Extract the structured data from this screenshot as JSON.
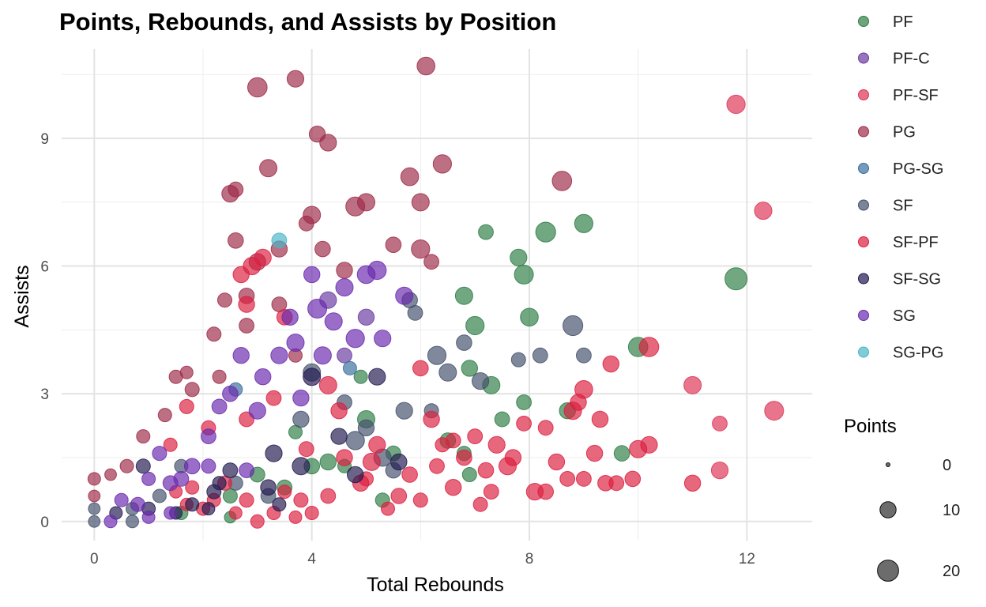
{
  "chart_data": {
    "type": "scatter",
    "title": "Points, Rebounds, and Assists by Position",
    "xlabel": "Total Rebounds",
    "ylabel": "Assists",
    "xlim": [
      -0.6,
      13.2
    ],
    "ylim": [
      -0.45,
      11.1
    ],
    "xticks": [
      0,
      4,
      8,
      12
    ],
    "yticks": [
      0,
      3,
      6,
      9
    ],
    "grid": true,
    "legend_position": "right",
    "size_legend": {
      "title": "Points",
      "values": [
        0,
        10,
        20
      ]
    },
    "series": [
      {
        "name": "PF",
        "color": "#2e7d45",
        "points": [
          [
            11.8,
            5.7,
            22
          ],
          [
            10.0,
            4.1,
            16
          ],
          [
            9.0,
            7.0,
            14
          ],
          [
            8.3,
            6.8,
            17
          ],
          [
            7.9,
            5.8,
            15
          ],
          [
            7.8,
            6.2,
            11
          ],
          [
            7.2,
            6.8,
            8
          ],
          [
            8.0,
            4.8,
            13
          ],
          [
            7.0,
            4.6,
            14
          ],
          [
            6.8,
            5.3,
            12
          ],
          [
            6.9,
            3.6,
            10
          ],
          [
            7.3,
            3.2,
            12
          ],
          [
            7.5,
            2.4,
            8
          ],
          [
            6.5,
            1.9,
            9
          ],
          [
            6.8,
            1.6,
            7
          ],
          [
            7.9,
            2.8,
            8
          ],
          [
            8.7,
            2.6,
            10
          ],
          [
            5.0,
            2.4,
            12
          ],
          [
            4.9,
            3.4,
            6
          ],
          [
            5.5,
            1.6,
            8
          ],
          [
            5.3,
            0.5,
            7
          ],
          [
            4.3,
            1.4,
            10
          ],
          [
            3.5,
            0.8,
            8
          ],
          [
            3.7,
            2.1,
            6
          ],
          [
            4.0,
            1.3,
            9
          ],
          [
            2.5,
            0.6,
            7
          ],
          [
            1.6,
            0.2,
            6
          ],
          [
            2.5,
            0.1,
            4
          ],
          [
            3.0,
            1.1,
            8
          ],
          [
            4.6,
            1.3,
            6
          ],
          [
            9.7,
            1.6,
            9
          ],
          [
            6.9,
            1.1,
            7
          ]
        ]
      },
      {
        "name": "PF-C",
        "color": "#6a3ba0",
        "points": [
          [
            4.3,
            5.2,
            11
          ],
          [
            5.0,
            4.8,
            10
          ],
          [
            4.6,
            3.9,
            8
          ]
        ]
      },
      {
        "name": "PF-SF",
        "color": "#dd3355",
        "points": [
          [
            11.8,
            9.8,
            14
          ],
          [
            12.3,
            7.3,
            12
          ],
          [
            12.5,
            2.6,
            15
          ],
          [
            11.0,
            3.2,
            12
          ],
          [
            11.5,
            2.3,
            8
          ],
          [
            11.5,
            1.2,
            11
          ]
        ]
      },
      {
        "name": "PG",
        "color": "#9e2b48",
        "points": [
          [
            3.0,
            10.2,
            16
          ],
          [
            3.7,
            10.4,
            11
          ],
          [
            6.1,
            10.7,
            13
          ],
          [
            4.1,
            9.1,
            10
          ],
          [
            4.3,
            8.9,
            11
          ],
          [
            3.2,
            8.3,
            12
          ],
          [
            2.5,
            7.7,
            11
          ],
          [
            2.6,
            7.8,
            8
          ],
          [
            5.8,
            8.1,
            13
          ],
          [
            6.4,
            8.4,
            14
          ],
          [
            8.6,
            8.0,
            16
          ],
          [
            4.0,
            7.2,
            12
          ],
          [
            4.8,
            7.4,
            15
          ],
          [
            5.0,
            7.5,
            12
          ],
          [
            6.0,
            7.5,
            12
          ],
          [
            2.6,
            6.6,
            9
          ],
          [
            3.0,
            6.1,
            11
          ],
          [
            3.4,
            6.4,
            10
          ],
          [
            4.2,
            6.4,
            9
          ],
          [
            6.0,
            6.4,
            14
          ],
          [
            6.2,
            6.1,
            8
          ],
          [
            2.4,
            5.2,
            7
          ],
          [
            2.8,
            5.3,
            9
          ],
          [
            3.4,
            5.1,
            8
          ],
          [
            2.8,
            4.6,
            8
          ],
          [
            2.2,
            4.4,
            7
          ],
          [
            3.7,
            3.9,
            6
          ],
          [
            1.5,
            3.4,
            6
          ],
          [
            1.8,
            3.1,
            7
          ],
          [
            1.3,
            2.5,
            6
          ],
          [
            0.9,
            2.0,
            6
          ],
          [
            0.6,
            1.3,
            6
          ],
          [
            0.0,
            1.0,
            5
          ],
          [
            0.3,
            1.1,
            4
          ],
          [
            0.0,
            0.6,
            4
          ],
          [
            1.7,
            3.5,
            5
          ],
          [
            2.3,
            3.4,
            6
          ],
          [
            4.6,
            5.9,
            10
          ],
          [
            5.5,
            6.5,
            9
          ],
          [
            3.9,
            7.0,
            8
          ]
        ]
      },
      {
        "name": "PG-SG",
        "color": "#3a6f9e",
        "points": [
          [
            4.7,
            3.6,
            6
          ],
          [
            2.6,
            3.1,
            6
          ]
        ]
      },
      {
        "name": "SF",
        "color": "#44506b",
        "points": [
          [
            8.8,
            4.6,
            17
          ],
          [
            9.0,
            3.9,
            8
          ],
          [
            8.2,
            3.9,
            8
          ],
          [
            7.8,
            3.8,
            7
          ],
          [
            6.3,
            3.9,
            14
          ],
          [
            5.8,
            5.2,
            9
          ],
          [
            5.7,
            2.6,
            11
          ],
          [
            5.9,
            4.9,
            8
          ],
          [
            6.2,
            2.6,
            7
          ],
          [
            5.3,
            1.5,
            12
          ],
          [
            4.8,
            1.9,
            14
          ],
          [
            5.0,
            2.2,
            10
          ],
          [
            4.6,
            2.8,
            8
          ],
          [
            5.5,
            1.2,
            9
          ],
          [
            3.8,
            2.4,
            10
          ],
          [
            4.0,
            3.5,
            12
          ],
          [
            3.2,
            0.6,
            8
          ],
          [
            2.6,
            0.9,
            7
          ],
          [
            1.6,
            1.3,
            6
          ],
          [
            1.2,
            0.6,
            6
          ],
          [
            0.7,
            0.3,
            5
          ],
          [
            0.0,
            0.3,
            4
          ],
          [
            0.0,
            0.0,
            4
          ],
          [
            0.7,
            0.0,
            5
          ],
          [
            6.5,
            3.5,
            12
          ],
          [
            7.1,
            3.3,
            11
          ],
          [
            6.8,
            4.2,
            9
          ]
        ]
      },
      {
        "name": "SF-PF",
        "color": "#dc1f40",
        "points": [
          [
            10.2,
            4.1,
            16
          ],
          [
            10.0,
            1.7,
            12
          ],
          [
            10.2,
            1.8,
            11
          ],
          [
            9.9,
            1.0,
            9
          ],
          [
            9.5,
            3.7,
            10
          ],
          [
            9.3,
            2.4,
            10
          ],
          [
            9.0,
            3.1,
            13
          ],
          [
            8.9,
            2.8,
            10
          ],
          [
            9.2,
            1.6,
            10
          ],
          [
            9.0,
            1.0,
            8
          ],
          [
            8.8,
            2.6,
            12
          ],
          [
            8.5,
            1.4,
            10
          ],
          [
            8.3,
            2.2,
            8
          ],
          [
            8.1,
            0.7,
            11
          ],
          [
            7.7,
            1.5,
            10
          ],
          [
            7.4,
            1.8,
            11
          ],
          [
            7.2,
            1.2,
            9
          ],
          [
            7.1,
            0.4,
            7
          ],
          [
            6.8,
            1.5,
            9
          ],
          [
            6.6,
            0.8,
            10
          ],
          [
            6.2,
            2.4,
            10
          ],
          [
            6.3,
            1.3,
            8
          ],
          [
            6.0,
            3.6,
            9
          ],
          [
            5.8,
            1.1,
            9
          ],
          [
            5.6,
            0.6,
            9
          ],
          [
            5.1,
            1.4,
            12
          ],
          [
            4.9,
            0.9,
            10
          ],
          [
            4.6,
            1.5,
            10
          ],
          [
            4.3,
            0.6,
            8
          ],
          [
            4.0,
            0.2,
            6
          ],
          [
            3.8,
            0.5,
            7
          ],
          [
            3.5,
            0.7,
            6
          ],
          [
            3.3,
            0.2,
            6
          ],
          [
            3.0,
            0.0,
            6
          ],
          [
            2.8,
            0.5,
            7
          ],
          [
            2.6,
            0.2,
            5
          ],
          [
            2.4,
            0.9,
            7
          ],
          [
            2.2,
            0.5,
            6
          ],
          [
            2.0,
            0.3,
            6
          ],
          [
            1.8,
            0.8,
            6
          ],
          [
            1.7,
            0.4,
            5
          ],
          [
            1.5,
            0.7,
            5
          ],
          [
            2.8,
            2.4,
            8
          ],
          [
            3.3,
            2.9,
            8
          ],
          [
            2.1,
            2.2,
            7
          ],
          [
            1.7,
            2.7,
            7
          ],
          [
            1.4,
            1.8,
            6
          ],
          [
            8.7,
            1.0,
            8
          ],
          [
            9.6,
            0.9,
            8
          ],
          [
            11.0,
            0.9,
            10
          ],
          [
            2.7,
            5.8,
            10
          ],
          [
            2.9,
            6.0,
            12
          ],
          [
            3.1,
            6.2,
            11
          ],
          [
            2.8,
            5.1,
            10
          ],
          [
            3.5,
            4.8,
            9
          ],
          [
            4.3,
            3.2,
            12
          ],
          [
            4.5,
            2.6,
            10
          ],
          [
            5.2,
            1.8,
            11
          ],
          [
            6.0,
            0.5,
            7
          ],
          [
            6.6,
            1.9,
            8
          ],
          [
            7.6,
            1.3,
            12
          ],
          [
            8.3,
            0.7,
            9
          ],
          [
            7.9,
            2.3,
            8
          ],
          [
            3.7,
            0.1,
            5
          ],
          [
            3.9,
            1.7,
            8
          ],
          [
            5.0,
            1.0,
            7
          ],
          [
            5.4,
            0.3,
            6
          ],
          [
            6.4,
            1.8,
            7
          ],
          [
            7.0,
            2.0,
            8
          ],
          [
            7.3,
            0.7,
            8
          ],
          [
            9.4,
            0.9,
            9
          ]
        ]
      },
      {
        "name": "SF-SG",
        "color": "#221a50",
        "points": [
          [
            4.0,
            3.4,
            12
          ],
          [
            4.5,
            2.0,
            10
          ],
          [
            3.8,
            1.3,
            12
          ],
          [
            3.2,
            0.8,
            9
          ],
          [
            2.5,
            1.2,
            8
          ],
          [
            2.2,
            0.7,
            7
          ],
          [
            1.8,
            0.4,
            6
          ],
          [
            0.9,
            1.3,
            7
          ],
          [
            0.4,
            0.2,
            5
          ],
          [
            1.5,
            0.2,
            5
          ],
          [
            2.3,
            0.9,
            6
          ],
          [
            2.1,
            0.3,
            5
          ],
          [
            3.4,
            0.4,
            6
          ],
          [
            1.0,
            0.3,
            6
          ],
          [
            4.8,
            1.1,
            10
          ],
          [
            5.6,
            1.4,
            10
          ],
          [
            3.3,
            1.6,
            11
          ],
          [
            5.2,
            3.4,
            11
          ]
        ]
      },
      {
        "name": "SG",
        "color": "#6a2aae",
        "points": [
          [
            5.2,
            5.9,
            14
          ],
          [
            5.0,
            5.8,
            13
          ],
          [
            4.6,
            5.5,
            12
          ],
          [
            4.1,
            5.0,
            15
          ],
          [
            4.4,
            4.7,
            12
          ],
          [
            4.8,
            4.3,
            14
          ],
          [
            3.7,
            4.2,
            12
          ],
          [
            3.4,
            3.9,
            11
          ],
          [
            3.1,
            3.4,
            10
          ],
          [
            2.7,
            3.9,
            10
          ],
          [
            2.5,
            3.0,
            9
          ],
          [
            3.0,
            2.6,
            11
          ],
          [
            2.3,
            2.7,
            8
          ],
          [
            2.1,
            2.0,
            8
          ],
          [
            1.8,
            1.3,
            9
          ],
          [
            1.4,
            0.9,
            8
          ],
          [
            1.2,
            1.6,
            7
          ],
          [
            1.0,
            1.0,
            6
          ],
          [
            0.8,
            0.4,
            7
          ],
          [
            0.5,
            0.5,
            6
          ],
          [
            0.3,
            0.0,
            5
          ],
          [
            1.0,
            0.1,
            5
          ],
          [
            1.4,
            0.2,
            5
          ],
          [
            3.8,
            2.9,
            10
          ],
          [
            4.2,
            3.9,
            12
          ],
          [
            5.7,
            5.3,
            12
          ],
          [
            3.6,
            4.8,
            10
          ],
          [
            4.0,
            5.8,
            10
          ],
          [
            5.3,
            4.3,
            11
          ],
          [
            2.1,
            1.3,
            7
          ],
          [
            1.6,
            1.0,
            8
          ],
          [
            2.8,
            1.2,
            8
          ]
        ]
      },
      {
        "name": "SG-PG",
        "color": "#4ab5c8",
        "points": [
          [
            3.4,
            6.6,
            8
          ]
        ]
      }
    ]
  }
}
